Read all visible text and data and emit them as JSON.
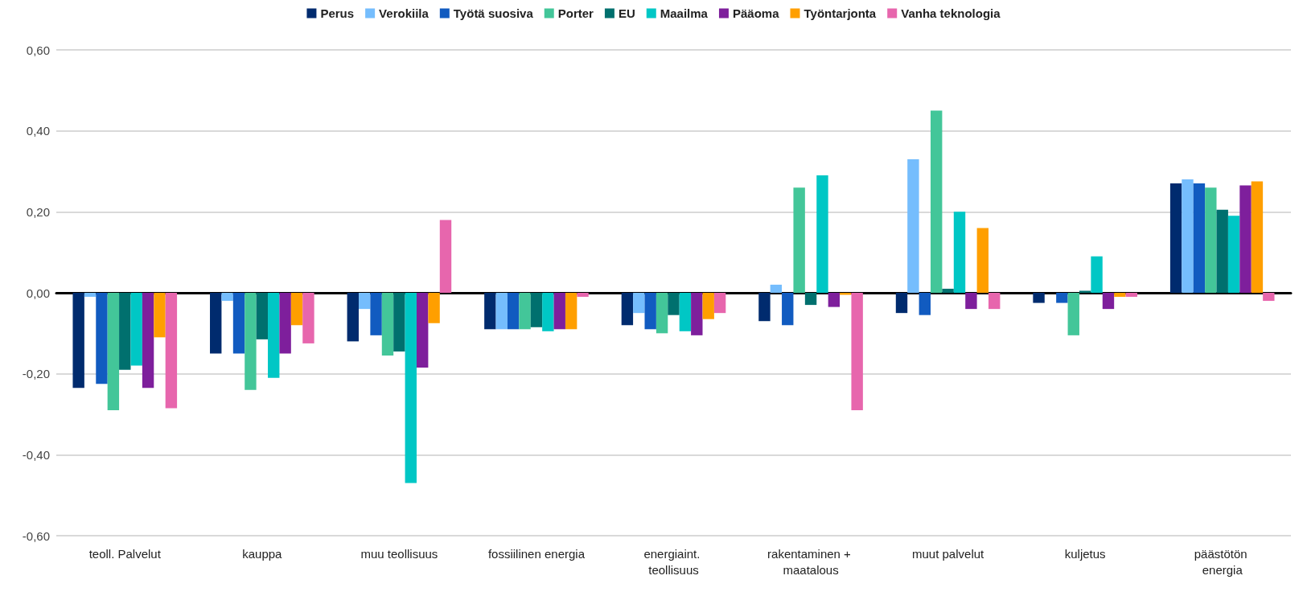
{
  "chart_data": {
    "type": "bar",
    "categories": [
      "teoll. Palvelut",
      "kauppa",
      "muu teollisuus",
      "fossiilinen energia",
      "energiaint. teollisuus",
      "rakentaminen + maatalous",
      "muut palvelut",
      "kuljetus",
      "päästötön energia"
    ],
    "series": [
      {
        "name": "Perus",
        "color": "#002b6e",
        "values": [
          -0.235,
          -0.15,
          -0.12,
          -0.09,
          -0.08,
          -0.07,
          -0.05,
          -0.025,
          0.27
        ]
      },
      {
        "name": "Verokiila",
        "color": "#75bdfd",
        "values": [
          -0.01,
          -0.02,
          -0.04,
          -0.09,
          -0.05,
          0.02,
          0.33,
          0,
          0.28
        ]
      },
      {
        "name": "Työtä suosiva",
        "color": "#115bc0",
        "values": [
          -0.225,
          -0.15,
          -0.105,
          -0.09,
          -0.09,
          -0.08,
          -0.055,
          -0.025,
          0.27
        ]
      },
      {
        "name": "Porter",
        "color": "#43c699",
        "values": [
          -0.29,
          -0.24,
          -0.155,
          -0.09,
          -0.1,
          0.26,
          0.45,
          -0.105,
          0.26
        ]
      },
      {
        "name": "EU",
        "color": "#00706e",
        "values": [
          -0.19,
          -0.115,
          -0.145,
          -0.085,
          -0.055,
          -0.03,
          0.01,
          0.005,
          0.205
        ]
      },
      {
        "name": "Maailma",
        "color": "#00c7c5",
        "values": [
          -0.18,
          -0.21,
          -0.47,
          -0.095,
          -0.095,
          0.29,
          0.2,
          0.09,
          0.19
        ]
      },
      {
        "name": "Pääoma",
        "color": "#7e1f9c",
        "values": [
          -0.235,
          -0.15,
          -0.185,
          -0.09,
          -0.105,
          -0.035,
          -0.04,
          -0.04,
          0.265
        ]
      },
      {
        "name": "Työntarjonta",
        "color": "#ff9f00",
        "values": [
          -0.11,
          -0.08,
          -0.075,
          -0.09,
          -0.065,
          -0.005,
          0.16,
          -0.01,
          0.275
        ]
      },
      {
        "name": "Vanha teknologia",
        "color": "#e766ad",
        "values": [
          -0.285,
          -0.125,
          0.18,
          -0.01,
          -0.05,
          -0.29,
          -0.04,
          -0.01,
          -0.02
        ]
      }
    ],
    "ylim": [
      -0.6,
      0.6
    ],
    "yticks": [
      {
        "value": -0.6,
        "label": "-0,60"
      },
      {
        "value": -0.4,
        "label": "-0,40"
      },
      {
        "value": -0.2,
        "label": "-0,20"
      },
      {
        "value": 0,
        "label": "0,00"
      },
      {
        "value": 0.2,
        "label": "0,20"
      },
      {
        "value": 0.4,
        "label": "0,40"
      },
      {
        "value": 0.6,
        "label": "0,60"
      }
    ],
    "grid": "y",
    "legend": "top"
  }
}
